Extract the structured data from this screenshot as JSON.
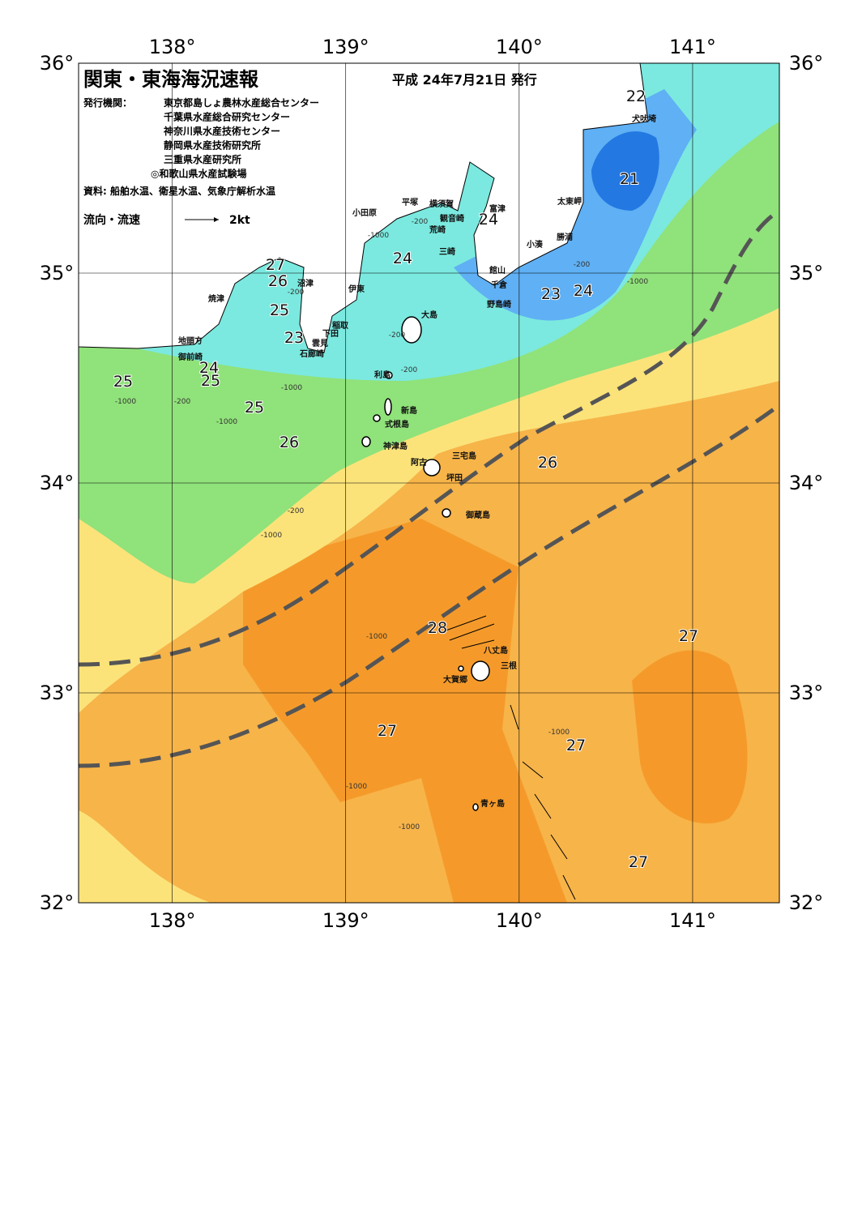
{
  "header": {
    "title": "関東・東海海況速報",
    "issue_date": "平成 24年7月21日 発行",
    "publisher_label": "発行機関：",
    "publishers": [
      "東京都島しょ農林水産総合センター",
      "千葉県水産総合研究センター",
      "神奈川県水産技術センター",
      "静岡県水産技術研究所",
      "三重県水産研究所",
      "◎和歌山県水産試験場"
    ],
    "source": "資料: 船舶水温、衛星水温、気象庁解析水温",
    "legend_label": "流向・流速",
    "legend_scale": "2kt"
  },
  "map": {
    "xlim": [
      137.46,
      141.5
    ],
    "ylim": [
      32,
      36
    ],
    "xticks": [
      {
        "value": 138,
        "label": "138°"
      },
      {
        "value": 139,
        "label": "139°"
      },
      {
        "value": 140,
        "label": "140°"
      },
      {
        "value": 141,
        "label": "141°"
      }
    ],
    "yticks": [
      {
        "value": 32,
        "label": "32°"
      },
      {
        "value": 33,
        "label": "33°"
      },
      {
        "value": 34,
        "label": "34°"
      },
      {
        "value": 35,
        "label": "35°"
      },
      {
        "value": 36,
        "label": "36°"
      }
    ],
    "temperature_labels": [
      22,
      21,
      24,
      24,
      27,
      26,
      25,
      23,
      23,
      24,
      24,
      25,
      25,
      25,
      26,
      26,
      28,
      27,
      27,
      27,
      27
    ],
    "place_labels": [
      "犬吠埼",
      "太東岬",
      "勝浦",
      "小湊",
      "富津",
      "横須賀",
      "平塚",
      "小田原",
      "観音崎",
      "荒崎",
      "三崎",
      "館山",
      "千倉",
      "野島崎",
      "沼津",
      "伊東",
      "焼津",
      "大島",
      "稲取",
      "下田",
      "雲見",
      "石廊崎",
      "地頭方",
      "御前崎",
      "利島",
      "新島",
      "式根島",
      "神津島",
      "阿古",
      "三宅島",
      "坪田",
      "御蔵島",
      "八丈島",
      "三根",
      "大賀郷",
      "青ヶ島"
    ],
    "depth_labels": [
      -200,
      -1000,
      -200,
      -1000,
      -200,
      -200,
      -1000,
      -200,
      -1000,
      -1000,
      -200,
      -1000,
      -1000,
      -1000,
      -1000,
      -1000,
      -200
    ]
  }
}
